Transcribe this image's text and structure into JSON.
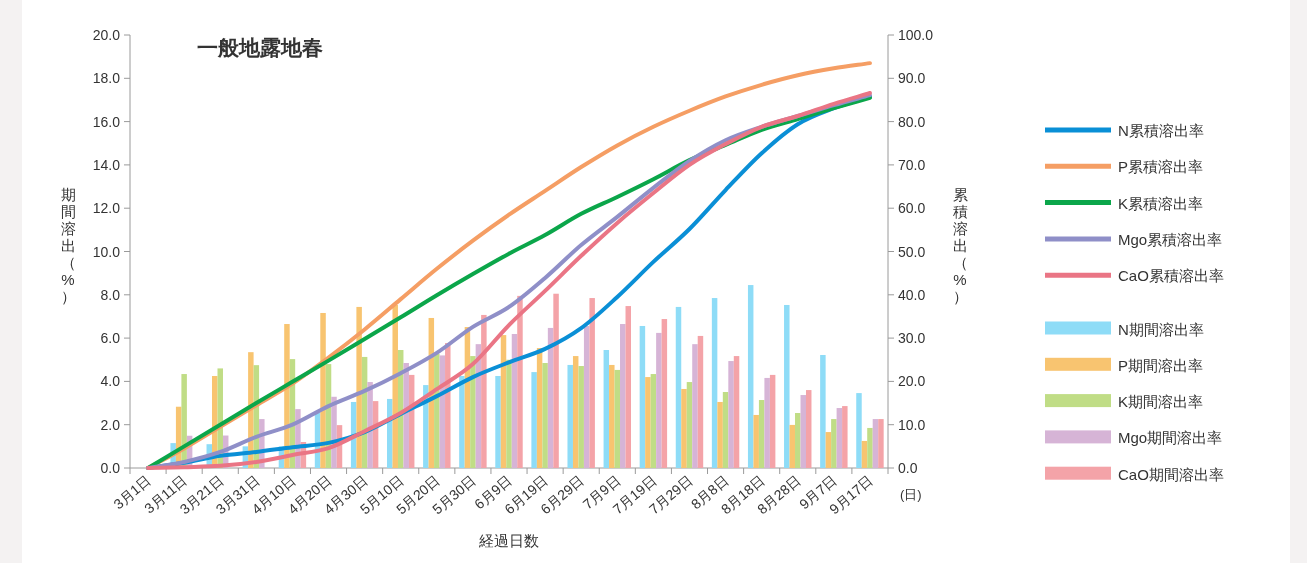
{
  "chart_data": {
    "type": "bar",
    "title": "一般地露地春",
    "xlabel": "経過日数",
    "ylabel": "期間溶出（%）",
    "y2label": "累積溶出（%）",
    "annotations": [
      "(日)"
    ],
    "categories": [
      "3月1日",
      "3月11日",
      "3月21日",
      "3月31日",
      "4月10日",
      "4月20日",
      "4月30日",
      "5月10日",
      "5月20日",
      "5月30日",
      "6月9日",
      "6月19日",
      "6月29日",
      "7月9日",
      "7月19日",
      "7月29日",
      "8月8日",
      "8月18日",
      "8月28日",
      "9月7日",
      "9月17日"
    ],
    "ylim": [
      0,
      20
    ],
    "yticks": [
      {
        "value": 0,
        "label": "0.0"
      },
      {
        "value": 2,
        "label": "2.0"
      },
      {
        "value": 4,
        "label": "4.0"
      },
      {
        "value": 6,
        "label": "6.0"
      },
      {
        "value": 8,
        "label": "8.0"
      },
      {
        "value": 10,
        "label": "10.0"
      },
      {
        "value": 12,
        "label": "12.0"
      },
      {
        "value": 14,
        "label": "14.0"
      },
      {
        "value": 16,
        "label": "16.0"
      },
      {
        "value": 18,
        "label": "18.0"
      },
      {
        "value": 20,
        "label": "20.0"
      }
    ],
    "y2lim": [
      0,
      100
    ],
    "y2ticks": [
      {
        "value": 0,
        "label": "0.0"
      },
      {
        "value": 10,
        "label": "10.0"
      },
      {
        "value": 20,
        "label": "20.0"
      },
      {
        "value": 30,
        "label": "30.0"
      },
      {
        "value": 40,
        "label": "40.0"
      },
      {
        "value": 50,
        "label": "50.0"
      },
      {
        "value": 60,
        "label": "60.0"
      },
      {
        "value": 70,
        "label": "70.0"
      },
      {
        "value": 80,
        "label": "80.0"
      },
      {
        "value": 90,
        "label": "90.0"
      },
      {
        "value": 100,
        "label": "100.0"
      }
    ],
    "legend": "right",
    "marker": "none",
    "line_style": "solid",
    "series": [
      {
        "name": "N累積溶出率",
        "type": "line",
        "axis": "y2",
        "color": "#0a8fd6",
        "values": [
          0,
          1.2,
          2.8,
          3.7,
          4.8,
          5.8,
          8.3,
          12.5,
          16.6,
          21,
          24.4,
          27.5,
          32.3,
          39.5,
          47.6,
          55.2,
          64.2,
          72.7,
          79.4,
          83.1,
          85.7
        ]
      },
      {
        "name": "P累積溶出率",
        "type": "line",
        "axis": "y2",
        "color": "#f59e64",
        "values": [
          0,
          4.5,
          9.5,
          14.5,
          19.5,
          25.5,
          32,
          39,
          46,
          52.5,
          58.5,
          64,
          69.5,
          74.5,
          78.8,
          82.5,
          85.8,
          88.5,
          90.7,
          92.3,
          93.5
        ]
      },
      {
        "name": "K累積溶出率",
        "type": "line",
        "axis": "y2",
        "color": "#0ba64a",
        "values": [
          0,
          5,
          10,
          15,
          19.9,
          24.8,
          29.8,
          34.8,
          39.9,
          44.8,
          49.5,
          53.8,
          58.7,
          62.6,
          66.7,
          71.1,
          74.6,
          78.1,
          80.6,
          83.1,
          85.5
        ]
      },
      {
        "name": "Mgo累積溶出率",
        "type": "line",
        "axis": "y2",
        "color": "#8f8fc8",
        "values": [
          0,
          1.4,
          3.7,
          7.2,
          10,
          14.3,
          17.8,
          21.9,
          26.6,
          32.6,
          37.2,
          43.9,
          51.5,
          58,
          64.7,
          70.9,
          75.7,
          78.8,
          81.3,
          83.8,
          86.1
        ]
      },
      {
        "name": "CaO累積溶出率",
        "type": "line",
        "axis": "y2",
        "color": "#ea7585",
        "values": [
          0,
          0.2,
          0.5,
          1.4,
          3,
          4.6,
          8.5,
          12.7,
          18.2,
          24,
          33,
          40.9,
          49,
          56.6,
          63.5,
          70,
          74.8,
          78.8,
          81.3,
          84.1,
          86.6
        ]
      },
      {
        "name": "N期間溶出率",
        "color": "#8edcf7",
        "values": [
          0,
          1.15,
          1.1,
          1.0,
          1.0,
          2.54,
          3.05,
          3.19,
          3.83,
          4.25,
          4.25,
          4.43,
          4.76,
          5.45,
          6.56,
          7.44,
          7.85,
          8.45,
          7.53,
          5.22,
          3.46
        ]
      },
      {
        "name": "P期間溶出率",
        "color": "#f8c470",
        "values": [
          0,
          2.83,
          4.25,
          5.35,
          6.65,
          7.16,
          7.44,
          7.53,
          6.93,
          6.51,
          6.14,
          5.54,
          5.17,
          4.76,
          4.2,
          3.65,
          3.05,
          2.45,
          1.99,
          1.66,
          1.25
        ]
      },
      {
        "name": "K期間溶出率",
        "color": "#c0dd86",
        "values": [
          0,
          4.34,
          4.6,
          4.75,
          5.03,
          4.8,
          5.13,
          5.45,
          5.27,
          5.17,
          5.0,
          4.85,
          4.71,
          4.53,
          4.34,
          3.97,
          3.51,
          3.14,
          2.54,
          2.26,
          1.85
        ]
      },
      {
        "name": "Mgo期間溶出率",
        "color": "#d6b4d6",
        "values": [
          0,
          1.49,
          1.5,
          2.26,
          2.72,
          3.29,
          3.97,
          4.85,
          5.2,
          5.72,
          6.19,
          6.47,
          6.56,
          6.65,
          6.24,
          5.72,
          4.94,
          4.16,
          3.37,
          2.77,
          2.26
        ]
      },
      {
        "name": "CaO期間溶出率",
        "color": "#f4a3a8",
        "values": [
          0,
          null,
          null,
          null,
          1.2,
          1.98,
          3.09,
          4.3,
          5.77,
          7.07,
          7.95,
          8.05,
          7.85,
          7.48,
          6.88,
          6.1,
          5.17,
          4.3,
          3.6,
          2.86,
          2.26
        ]
      }
    ]
  }
}
